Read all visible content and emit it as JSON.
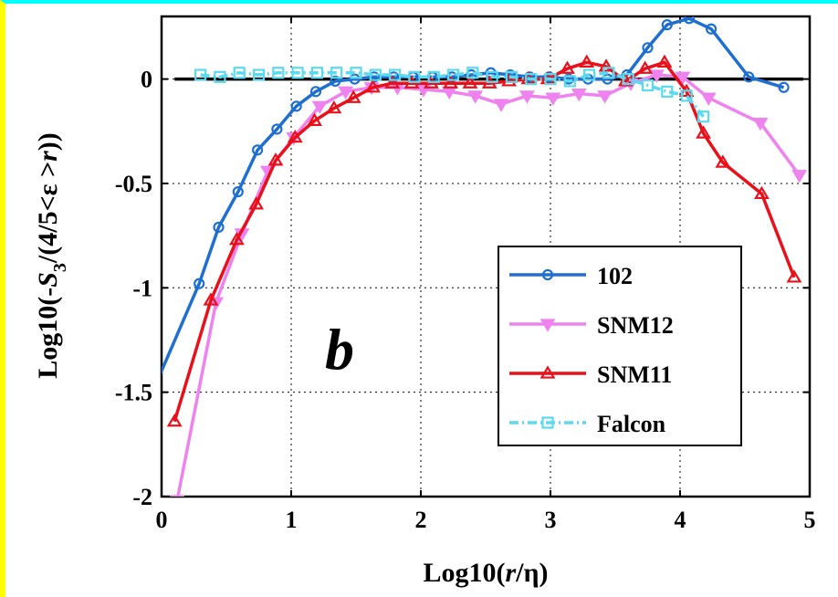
{
  "frame": {
    "left_edge_color": "#ffff00",
    "top_edge_color": "#00ffff"
  },
  "chart_data": {
    "type": "line",
    "panel_label": "b",
    "xlabel": "Log10(r/η)",
    "ylabel": "Log10(-S3/(4/5<ε >r))",
    "xlim": [
      0,
      5
    ],
    "ylim": [
      -2,
      0.3
    ],
    "xticks": [
      0,
      1,
      2,
      3,
      4,
      5
    ],
    "xtick_labels": [
      "0",
      "1",
      "2",
      "3",
      "4",
      "5"
    ],
    "yticks": [
      -2,
      -1.5,
      -1,
      -0.5,
      0
    ],
    "ytick_labels": [
      "-2",
      "-1.5",
      "-1",
      "-0.5",
      "0"
    ],
    "grid": true,
    "grid_style": "dotted",
    "reference_line_y": 0,
    "legend_position": "lower-right",
    "series": [
      {
        "name": "102",
        "color": "#1f6fd0",
        "marker": "circle",
        "line_style": "solid",
        "points": [
          [
            -0.05,
            -1.47
          ],
          [
            0.29,
            -0.98
          ],
          [
            0.44,
            -0.71
          ],
          [
            0.59,
            -0.54
          ],
          [
            0.74,
            -0.34
          ],
          [
            0.89,
            -0.24
          ],
          [
            1.04,
            -0.13
          ],
          [
            1.19,
            -0.06
          ],
          [
            1.34,
            -0.01
          ],
          [
            1.49,
            0.0
          ],
          [
            1.64,
            0.01
          ],
          [
            1.79,
            0.01
          ],
          [
            1.94,
            0.01
          ],
          [
            2.09,
            0.01
          ],
          [
            2.24,
            0.01
          ],
          [
            2.39,
            0.02
          ],
          [
            2.54,
            0.03
          ],
          [
            2.69,
            0.02
          ],
          [
            2.84,
            0.01
          ],
          [
            2.99,
            0.01
          ],
          [
            3.14,
            0.0
          ],
          [
            3.29,
            0.0
          ],
          [
            3.44,
            0.0
          ],
          [
            3.59,
            0.02
          ],
          [
            3.75,
            0.15
          ],
          [
            3.9,
            0.26
          ],
          [
            4.07,
            0.29
          ],
          [
            4.24,
            0.24
          ],
          [
            4.53,
            0.01
          ],
          [
            4.8,
            -0.04
          ]
        ]
      },
      {
        "name": "SNM12",
        "color": "#ee82ee",
        "marker": "triangle-down",
        "line_style": "solid",
        "points": [
          [
            0.12,
            -2.02
          ],
          [
            0.42,
            -1.07
          ],
          [
            0.62,
            -0.74
          ],
          [
            0.82,
            -0.44
          ],
          [
            1.02,
            -0.28
          ],
          [
            1.22,
            -0.13
          ],
          [
            1.42,
            -0.06
          ],
          [
            1.62,
            -0.04
          ],
          [
            1.82,
            -0.04
          ],
          [
            2.02,
            -0.05
          ],
          [
            2.22,
            -0.06
          ],
          [
            2.42,
            -0.08
          ],
          [
            2.62,
            -0.12
          ],
          [
            2.82,
            -0.08
          ],
          [
            3.02,
            -0.09
          ],
          [
            3.22,
            -0.07
          ],
          [
            3.42,
            -0.08
          ],
          [
            3.62,
            -0.02
          ],
          [
            3.82,
            0.02
          ],
          [
            4.02,
            0.01
          ],
          [
            4.22,
            -0.09
          ],
          [
            4.62,
            -0.21
          ],
          [
            4.92,
            -0.46
          ]
        ]
      },
      {
        "name": "SNM11",
        "color": "#e8101a",
        "marker": "triangle-up",
        "line_style": "solid",
        "points": [
          [
            0.1,
            -1.64
          ],
          [
            0.38,
            -1.06
          ],
          [
            0.58,
            -0.77
          ],
          [
            0.73,
            -0.6
          ],
          [
            0.88,
            -0.39
          ],
          [
            1.03,
            -0.28
          ],
          [
            1.18,
            -0.2
          ],
          [
            1.33,
            -0.14
          ],
          [
            1.48,
            -0.09
          ],
          [
            1.63,
            -0.04
          ],
          [
            1.78,
            -0.02
          ],
          [
            1.93,
            -0.02
          ],
          [
            2.08,
            -0.02
          ],
          [
            2.23,
            -0.02
          ],
          [
            2.38,
            -0.02
          ],
          [
            2.53,
            -0.02
          ],
          [
            2.68,
            -0.01
          ],
          [
            2.83,
            0.0
          ],
          [
            2.98,
            0.0
          ],
          [
            3.13,
            0.05
          ],
          [
            3.28,
            0.08
          ],
          [
            3.43,
            0.06
          ],
          [
            3.58,
            -0.01
          ],
          [
            3.73,
            0.05
          ],
          [
            3.88,
            0.08
          ],
          [
            4.05,
            -0.06
          ],
          [
            4.18,
            -0.26
          ],
          [
            4.33,
            -0.4
          ],
          [
            4.63,
            -0.55
          ],
          [
            4.88,
            -0.95
          ]
        ]
      },
      {
        "name": "Falcon",
        "color": "#5ad9ef",
        "marker": "square",
        "line_style": "dash-dot",
        "points": [
          [
            0.3,
            0.02
          ],
          [
            0.45,
            0.01
          ],
          [
            0.6,
            0.03
          ],
          [
            0.75,
            0.02
          ],
          [
            0.9,
            0.03
          ],
          [
            1.05,
            0.03
          ],
          [
            1.2,
            0.03
          ],
          [
            1.35,
            0.03
          ],
          [
            1.5,
            0.03
          ],
          [
            1.65,
            0.02
          ],
          [
            1.8,
            0.02
          ],
          [
            1.95,
            0.01
          ],
          [
            2.1,
            0.01
          ],
          [
            2.25,
            0.02
          ],
          [
            2.4,
            0.03
          ],
          [
            2.55,
            0.01
          ],
          [
            2.7,
            0.01
          ],
          [
            2.85,
            0.0
          ],
          [
            3.0,
            0.0
          ],
          [
            3.15,
            -0.01
          ],
          [
            3.3,
            0.02
          ],
          [
            3.45,
            0.03
          ],
          [
            3.6,
            0.0
          ],
          [
            3.75,
            -0.03
          ],
          [
            3.9,
            -0.06
          ],
          [
            4.05,
            -0.08
          ],
          [
            4.18,
            -0.18
          ]
        ]
      }
    ]
  }
}
